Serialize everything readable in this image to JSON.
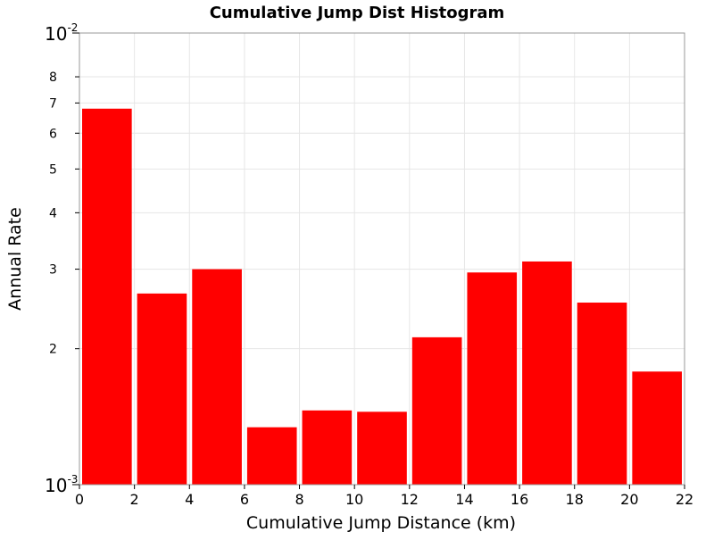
{
  "chart_data": {
    "type": "bar",
    "title": "Cumulative Jump Dist Histogram",
    "xlabel": "Cumulative Jump Distance (km)",
    "ylabel": "Annual Rate",
    "xlim": [
      0,
      22
    ],
    "ylim": [
      0.001,
      0.01
    ],
    "y_scale": "log",
    "grid": true,
    "x_ticks": [
      0,
      2,
      4,
      6,
      8,
      10,
      12,
      14,
      16,
      18,
      20,
      22
    ],
    "y_major_ticks": [
      {
        "value": 0.001,
        "base": "10",
        "exp": "-3"
      },
      {
        "value": 0.01,
        "base": "10",
        "exp": "-2"
      }
    ],
    "y_minor_ticks": [
      {
        "value": 0.002,
        "label": "2"
      },
      {
        "value": 0.003,
        "label": "3"
      },
      {
        "value": 0.004,
        "label": "4"
      },
      {
        "value": 0.005,
        "label": "5"
      },
      {
        "value": 0.006,
        "label": "6"
      },
      {
        "value": 0.007,
        "label": "7"
      },
      {
        "value": 0.008,
        "label": "8"
      }
    ],
    "bins": [
      {
        "x0": 0,
        "x1": 2,
        "value": 0.0068
      },
      {
        "x0": 2,
        "x1": 4,
        "value": 0.00265
      },
      {
        "x0": 4,
        "x1": 6,
        "value": 0.003
      },
      {
        "x0": 6,
        "x1": 8,
        "value": 0.00134
      },
      {
        "x0": 8,
        "x1": 10,
        "value": 0.00146
      },
      {
        "x0": 10,
        "x1": 12,
        "value": 0.00145
      },
      {
        "x0": 12,
        "x1": 14,
        "value": 0.00212
      },
      {
        "x0": 14,
        "x1": 16,
        "value": 0.00295
      },
      {
        "x0": 16,
        "x1": 18,
        "value": 0.00312
      },
      {
        "x0": 18,
        "x1": 20,
        "value": 0.00253
      },
      {
        "x0": 20,
        "x1": 22,
        "value": 0.00178
      }
    ],
    "colors": {
      "bar": "#ff0000",
      "grid": "#e6e6e6",
      "frame": "#999999"
    }
  }
}
